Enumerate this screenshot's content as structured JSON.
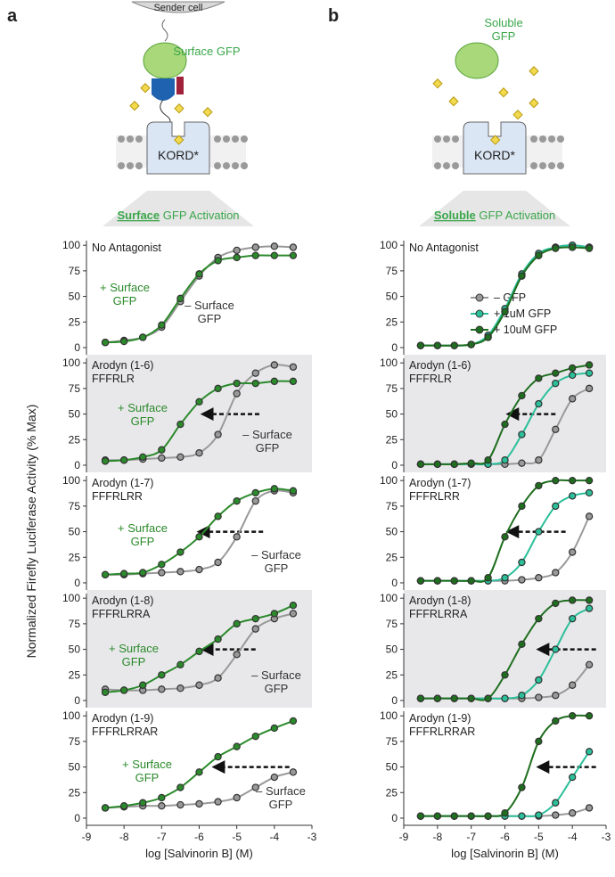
{
  "diagrams": {
    "a": {
      "label": "a",
      "sender": "Sender cell",
      "ligand": "Surface GFP",
      "receptor": "KORD*",
      "banner_em": "Surface",
      "banner_rest": "GFP Activation"
    },
    "b": {
      "label": "b",
      "ligand": "Soluble GFP",
      "receptor": "KORD*",
      "banner_em": "Soluble",
      "banner_rest": "GFP Activation"
    }
  },
  "ylabel": "Normalized Firefly Luciferase Activity (% Max)",
  "chart_data": [
    {
      "type": "line",
      "title": "No Antagonist",
      "x": [
        -8.5,
        -8,
        -7.5,
        -7,
        -6.5,
        -6,
        -5.5,
        -5,
        -4.5,
        -4,
        -3.5
      ],
      "xlim": [
        -9,
        -3
      ],
      "ylim": [
        -7,
        108
      ],
      "yticks": [
        0,
        25,
        50,
        75,
        100
      ],
      "series": [
        {
          "name": "– Surface GFP",
          "color": "#999999",
          "values": [
            5,
            7,
            10,
            20,
            45,
            70,
            88,
            95,
            98,
            99,
            98
          ]
        },
        {
          "name": "+ Surface GFP",
          "color": "#2b8a2b",
          "values": [
            5,
            6,
            10,
            22,
            48,
            72,
            85,
            88,
            90,
            90,
            90
          ]
        }
      ]
    },
    {
      "type": "line",
      "title": "Arodyn (1-6)",
      "subtitle": "FFFRLR",
      "background": "#e8e8ea",
      "x": [
        -8.5,
        -8,
        -7.5,
        -7,
        -6.5,
        -6,
        -5.5,
        -5,
        -4.5,
        -4,
        -3.5
      ],
      "xlim": [
        -9,
        -3
      ],
      "ylim": [
        -7,
        108
      ],
      "yticks": [
        0,
        25,
        50,
        75,
        100
      ],
      "series": [
        {
          "name": "– Surface GFP",
          "color": "#999999",
          "values": [
            5,
            5,
            6,
            7,
            8,
            12,
            30,
            70,
            90,
            98,
            96
          ]
        },
        {
          "name": "+ Surface GFP",
          "color": "#2b8a2b",
          "values": [
            4,
            5,
            8,
            15,
            40,
            62,
            75,
            80,
            80,
            82,
            82
          ]
        }
      ]
    },
    {
      "type": "line",
      "title": "Arodyn (1-7)",
      "subtitle": "FFFRLRR",
      "x": [
        -8.5,
        -8,
        -7.5,
        -7,
        -6.5,
        -6,
        -5.5,
        -5,
        -4.5,
        -4,
        -3.5
      ],
      "xlim": [
        -9,
        -3
      ],
      "ylim": [
        -7,
        108
      ],
      "yticks": [
        0,
        25,
        50,
        75,
        100
      ],
      "series": [
        {
          "name": "– Surface GFP",
          "color": "#999999",
          "values": [
            8,
            8,
            9,
            10,
            11,
            13,
            20,
            45,
            80,
            90,
            88
          ]
        },
        {
          "name": "+ Surface GFP",
          "color": "#2b8a2b",
          "values": [
            8,
            9,
            10,
            18,
            30,
            45,
            65,
            80,
            88,
            92,
            90
          ]
        }
      ]
    },
    {
      "type": "line",
      "title": "Arodyn (1-8)",
      "subtitle": "FFFRLRRA",
      "background": "#e8e8ea",
      "x": [
        -8.5,
        -8,
        -7.5,
        -7,
        -6.5,
        -6,
        -5.5,
        -5,
        -4.5,
        -4,
        -3.5
      ],
      "xlim": [
        -9,
        -3
      ],
      "ylim": [
        -7,
        108
      ],
      "yticks": [
        0,
        25,
        50,
        75,
        100
      ],
      "series": [
        {
          "name": "– Surface GFP",
          "color": "#999999",
          "values": [
            11,
            10,
            10,
            11,
            12,
            15,
            22,
            45,
            70,
            80,
            85
          ]
        },
        {
          "name": "+ Surface GFP",
          "color": "#2b8a2b",
          "values": [
            8,
            10,
            15,
            25,
            35,
            48,
            60,
            75,
            80,
            85,
            93
          ]
        }
      ]
    },
    {
      "type": "line",
      "title": "Arodyn (1-9)",
      "subtitle": "FFFRLRRAR",
      "xlabel": "log [Salvinorin B] (M)",
      "x": [
        -8.5,
        -8,
        -7.5,
        -7,
        -6.5,
        -6,
        -5.5,
        -5,
        -4.5,
        -4,
        -3.5
      ],
      "xlim": [
        -9,
        -3
      ],
      "xticks": [
        -9,
        -8,
        -7,
        -6,
        -5,
        -4,
        -3
      ],
      "ylim": [
        -7,
        108
      ],
      "yticks": [
        0,
        25,
        50,
        75,
        100
      ],
      "series": [
        {
          "name": "– Surface GFP",
          "color": "#999999",
          "values": [
            10,
            11,
            12,
            12,
            13,
            14,
            16,
            20,
            30,
            40,
            45
          ]
        },
        {
          "name": "+ Surface GFP",
          "color": "#2b8a2b",
          "values": [
            10,
            12,
            15,
            20,
            30,
            45,
            60,
            70,
            80,
            88,
            95
          ]
        }
      ]
    },
    {
      "type": "line",
      "title": "No Antagonist",
      "x": [
        -8.5,
        -8,
        -7.5,
        -7,
        -6.5,
        -6,
        -5.5,
        -5,
        -4.5,
        -4,
        -3.5
      ],
      "xlim": [
        -9,
        -3
      ],
      "ylim": [
        -7,
        108
      ],
      "yticks": [
        0,
        25,
        50,
        75,
        100
      ],
      "series": [
        {
          "name": "– GFP",
          "color": "#999999",
          "values": [
            2,
            2,
            2,
            3,
            10,
            35,
            70,
            90,
            98,
            100,
            98
          ]
        },
        {
          "name": "+ 1uM GFP",
          "color": "#2bbf9a",
          "values": [
            2,
            2,
            2,
            3,
            12,
            38,
            72,
            92,
            98,
            100,
            98
          ]
        },
        {
          "name": "+ 10uM GFP",
          "color": "#1f6e1f",
          "values": [
            2,
            2,
            2,
            3,
            10,
            35,
            70,
            90,
            97,
            98,
            97
          ]
        }
      ]
    },
    {
      "type": "line",
      "title": "Arodyn (1-6)",
      "subtitle": "FFFRLR",
      "background": "#e8e8ea",
      "x": [
        -8.5,
        -8,
        -7.5,
        -7,
        -6.5,
        -6,
        -5.5,
        -5,
        -4.5,
        -4,
        -3.5
      ],
      "xlim": [
        -9,
        -3
      ],
      "ylim": [
        -7,
        108
      ],
      "yticks": [
        0,
        25,
        50,
        75,
        100
      ],
      "series": [
        {
          "color": "#999999",
          "values": [
            1,
            1,
            1,
            1,
            1,
            1,
            2,
            5,
            35,
            65,
            75
          ]
        },
        {
          "color": "#2bbf9a",
          "values": [
            1,
            1,
            1,
            1,
            1,
            5,
            30,
            60,
            80,
            88,
            90
          ]
        },
        {
          "color": "#1f6e1f",
          "values": [
            1,
            1,
            1,
            2,
            5,
            40,
            68,
            85,
            90,
            95,
            98
          ]
        }
      ]
    },
    {
      "type": "line",
      "title": "Arodyn (1-7)",
      "subtitle": "FFFRLRR",
      "x": [
        -8.5,
        -8,
        -7.5,
        -7,
        -6.5,
        -6,
        -5.5,
        -5,
        -4.5,
        -4,
        -3.5
      ],
      "xlim": [
        -9,
        -3
      ],
      "ylim": [
        -7,
        108
      ],
      "yticks": [
        0,
        25,
        50,
        75,
        100
      ],
      "series": [
        {
          "color": "#999999",
          "values": [
            2,
            2,
            2,
            2,
            2,
            2,
            3,
            5,
            10,
            30,
            65
          ]
        },
        {
          "color": "#2bbf9a",
          "values": [
            2,
            2,
            2,
            2,
            2,
            5,
            20,
            50,
            75,
            85,
            88
          ]
        },
        {
          "color": "#1f6e1f",
          "values": [
            2,
            2,
            2,
            2,
            5,
            45,
            75,
            95,
            100,
            100,
            100
          ]
        }
      ]
    },
    {
      "type": "line",
      "title": "Arodyn (1-8)",
      "subtitle": "FFFRLRRA",
      "background": "#e8e8ea",
      "x": [
        -8.5,
        -8,
        -7.5,
        -7,
        -6.5,
        -6,
        -5.5,
        -5,
        -4.5,
        -4,
        -3.5
      ],
      "xlim": [
        -9,
        -3
      ],
      "ylim": [
        -7,
        108
      ],
      "yticks": [
        0,
        25,
        50,
        75,
        100
      ],
      "series": [
        {
          "color": "#999999",
          "values": [
            2,
            2,
            2,
            2,
            2,
            2,
            2,
            3,
            5,
            15,
            35
          ]
        },
        {
          "color": "#2bbf9a",
          "values": [
            2,
            2,
            2,
            2,
            2,
            2,
            5,
            20,
            50,
            80,
            90
          ]
        },
        {
          "color": "#1f6e1f",
          "values": [
            2,
            2,
            2,
            2,
            2,
            25,
            55,
            80,
            95,
            98,
            98
          ]
        }
      ]
    },
    {
      "type": "line",
      "title": "Arodyn (1-9)",
      "subtitle": "FFFRLRRAR",
      "xlabel": "log [Salvinorin B] (M)",
      "x": [
        -8.5,
        -8,
        -7.5,
        -7,
        -6.5,
        -6,
        -5.5,
        -5,
        -4.5,
        -4,
        -3.5
      ],
      "xlim": [
        -9,
        -3
      ],
      "xticks": [
        -9,
        -8,
        -7,
        -6,
        -5,
        -4,
        -3
      ],
      "ylim": [
        -7,
        108
      ],
      "yticks": [
        0,
        25,
        50,
        75,
        100
      ],
      "series": [
        {
          "color": "#999999",
          "values": [
            2,
            2,
            2,
            2,
            2,
            2,
            2,
            2,
            3,
            5,
            10
          ]
        },
        {
          "color": "#2bbf9a",
          "values": [
            2,
            2,
            2,
            2,
            2,
            2,
            2,
            3,
            15,
            40,
            65
          ]
        },
        {
          "color": "#1f6e1f",
          "values": [
            2,
            2,
            2,
            2,
            2,
            5,
            30,
            75,
            95,
            100,
            100
          ]
        }
      ]
    }
  ]
}
